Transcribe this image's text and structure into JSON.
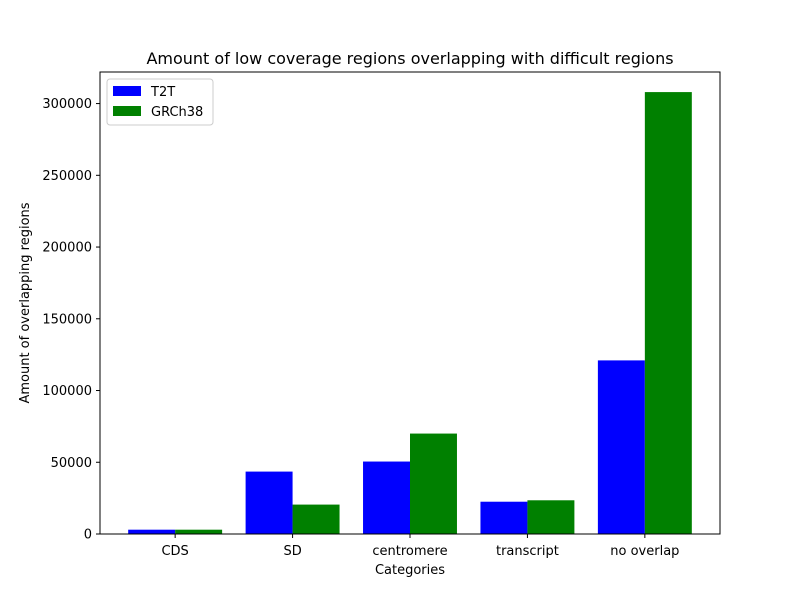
{
  "chart_data": {
    "type": "bar",
    "title": "Amount of low coverage regions overlapping with difficult regions",
    "xlabel": "Categories",
    "ylabel": "Amount of overlapping regions",
    "categories": [
      "CDS",
      "SD",
      "centromere",
      "transcript",
      "no overlap"
    ],
    "series": [
      {
        "name": "T2T",
        "color": "#0000ff",
        "values": [
          3000,
          43500,
          50500,
          22500,
          121000
        ]
      },
      {
        "name": "GRCh38",
        "color": "#008000",
        "values": [
          3000,
          20500,
          70000,
          23500,
          308000
        ]
      }
    ],
    "ylim": [
      0,
      322000
    ],
    "yticks": [
      0,
      50000,
      100000,
      150000,
      200000,
      250000,
      300000
    ],
    "grid": false,
    "legend_position": "top-left"
  }
}
